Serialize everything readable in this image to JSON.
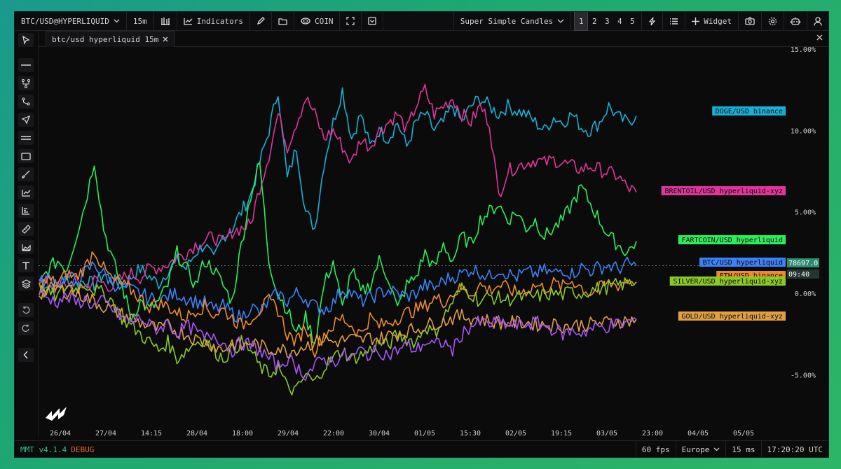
{
  "toolbar": {
    "symbol": "BTC/USD@HYPERLIQUID",
    "interval": "15m",
    "indicators_label": "Indicators",
    "coin_label": "COIN",
    "template_label": "Super Simple Candles",
    "layouts": [
      "1",
      "2",
      "3",
      "4",
      "5"
    ],
    "widget_label": "Widget"
  },
  "tab": {
    "label": "btc/usd hyperliquid 15m"
  },
  "status": {
    "version": "MMT v4.1.4",
    "debug": "DEBUG",
    "fps": "60 fps",
    "region": "Europe",
    "latency": "15 ms",
    "clock": "17:20:20 UTC"
  },
  "crosshair": {
    "price": "78697.0",
    "countdown": "09:40"
  },
  "colors": {
    "background": "#0b0b0c",
    "doge": "#19b0d6",
    "brent": "#e0359b",
    "fartcoin": "#2bef5a",
    "btc": "#3b82f6",
    "eth": "#f08a2c",
    "silver": "#8ac926",
    "gold": "#e0a040",
    "purple": "#a855f7"
  },
  "chart_data": {
    "type": "line",
    "ylabel": "",
    "ylim": [
      -7,
      15.5
    ],
    "y_ticks": [
      "15.00%",
      "10.00%",
      "5.00%",
      "0.00%",
      "-5.00%"
    ],
    "y_tick_values": [
      15,
      10,
      5,
      0,
      -5
    ],
    "x_ticks": [
      "26/04",
      "27/04",
      "14:15",
      "28/04",
      "18:00",
      "29/04",
      "22:00",
      "30/04",
      "01/05",
      "15:30",
      "02/05",
      "19:15",
      "03/05",
      "23:00",
      "04/05",
      "05/05"
    ],
    "x_ticks_idx": [
      2,
      7,
      12,
      17,
      22,
      27,
      32,
      37,
      42,
      47,
      52,
      57,
      62,
      67,
      72,
      77
    ],
    "n_points": 66,
    "series": [
      {
        "name": "DOGE/USD binance",
        "color": "#19b0d6",
        "values": [
          0.8,
          0.5,
          0.4,
          0.9,
          0.6,
          0.8,
          0.5,
          1.2,
          0.8,
          0.4,
          1.0,
          1.5,
          1.0,
          0.6,
          1.4,
          2.0,
          1.5,
          2.5,
          3.0,
          2.0,
          3.5,
          4.0,
          5.0,
          6.0,
          8.0,
          10.0,
          12.5,
          7.0,
          9.0,
          5.0,
          4.0,
          8.0,
          10.5,
          12.5,
          9.5,
          11.0,
          9.0,
          10.0,
          9.5,
          10.5,
          9.0,
          10.5,
          11.0,
          10.0,
          10.5,
          11.5,
          10.5,
          11.5,
          12.0,
          11.5,
          11.0,
          11.5,
          11.2,
          11.0,
          10.5,
          10.0,
          10.8,
          10.5,
          11.0,
          10.2,
          10.0,
          10.5,
          11.5,
          10.8,
          10.5,
          10.9
        ]
      },
      {
        "name": "BRENTOIL/USD hyperliquid-xyz",
        "color": "#e0359b",
        "values": [
          0.8,
          0.6,
          0.3,
          0.5,
          0.7,
          0.4,
          0.8,
          0.6,
          0.4,
          0.9,
          1.2,
          1.0,
          1.5,
          1.6,
          1.8,
          2.2,
          2.5,
          3.0,
          3.2,
          3.5,
          3.0,
          3.8,
          4.0,
          4.2,
          6.5,
          8.5,
          11.0,
          9.0,
          10.5,
          12.0,
          11.0,
          9.5,
          10.0,
          9.0,
          8.0,
          9.5,
          9.0,
          10.0,
          10.5,
          11.0,
          10.0,
          11.5,
          12.5,
          11.0,
          11.5,
          12.0,
          11.0,
          10.5,
          11.5,
          10.5,
          6.0,
          7.5,
          7.8,
          8.0,
          8.2,
          8.0,
          8.2,
          8.0,
          7.8,
          7.6,
          7.8,
          7.6,
          7.4,
          7.2,
          6.5,
          6.2
        ]
      },
      {
        "name": "FARTCOIN/USD hyperliquid",
        "color": "#2bef5a",
        "values": [
          0.5,
          1.5,
          2.0,
          1.5,
          3.5,
          5.5,
          8.2,
          4.0,
          2.0,
          0.5,
          -1.5,
          -0.5,
          -1.0,
          -0.5,
          0.5,
          2.5,
          1.5,
          0.5,
          2.0,
          1.5,
          0.5,
          -0.5,
          3.0,
          6.0,
          8.0,
          2.0,
          0.0,
          -1.0,
          -2.5,
          -1.5,
          -3.0,
          0.5,
          2.0,
          -1.0,
          1.5,
          0.0,
          0.5,
          2.0,
          1.0,
          -1.0,
          0.5,
          1.0,
          2.5,
          1.5,
          3.0,
          2.0,
          3.5,
          3.0,
          4.5,
          5.0,
          5.5,
          4.5,
          5.0,
          4.0,
          4.5,
          3.5,
          4.0,
          4.5,
          5.5,
          6.5,
          5.5,
          4.5,
          3.5,
          3.0,
          2.5,
          3.2
        ]
      },
      {
        "name": "BTC/USD hyperliquid",
        "color": "#3b82f6",
        "values": [
          0.6,
          0.9,
          0.7,
          1.0,
          0.8,
          1.3,
          1.8,
          1.2,
          0.6,
          0.4,
          0.2,
          0.0,
          -0.3,
          -0.5,
          -0.2,
          0.0,
          -0.3,
          -0.5,
          -0.6,
          -1.0,
          -0.8,
          -1.2,
          -1.5,
          -0.8,
          -1.2,
          -0.5,
          0.0,
          -0.5,
          0.0,
          -0.3,
          -0.8,
          -1.0,
          -0.6,
          0.3,
          0.0,
          -0.5,
          -0.3,
          0.0,
          0.2,
          0.0,
          -0.2,
          0.0,
          0.5,
          0.3,
          0.8,
          1.0,
          1.2,
          1.5,
          1.3,
          1.0,
          1.5,
          1.2,
          1.0,
          1.3,
          1.2,
          1.4,
          1.2,
          1.5,
          1.2,
          1.6,
          1.4,
          1.6,
          1.7,
          1.5,
          1.8,
          1.7
        ]
      },
      {
        "name": "ETH/USD binance",
        "color": "#f08a2c",
        "values": [
          0.4,
          0.8,
          0.6,
          1.2,
          1.0,
          1.6,
          2.7,
          1.5,
          0.8,
          0.5,
          0.2,
          -0.3,
          -0.8,
          -0.6,
          -0.8,
          -1.2,
          -1.5,
          -1.0,
          -0.8,
          -1.3,
          -1.0,
          -1.5,
          -2.0,
          -1.5,
          -1.0,
          -0.5,
          -1.0,
          -2.5,
          -3.0,
          -2.0,
          -3.5,
          -2.5,
          -2.0,
          -1.5,
          -2.0,
          -2.5,
          -1.5,
          -2.0,
          -1.8,
          -1.5,
          -1.2,
          -1.0,
          -0.8,
          -0.3,
          -0.5,
          0.0,
          0.3,
          0.0,
          0.5,
          0.2,
          0.5,
          0.3,
          0.0,
          0.2,
          0.5,
          0.3,
          0.6,
          0.4,
          0.8,
          0.4,
          0.0,
          0.3,
          0.6,
          0.5,
          0.8,
          0.7
        ]
      },
      {
        "name": "SILVER/USD hyperliquid-xyz",
        "color": "#8ac926",
        "values": [
          0.2,
          0.0,
          -0.2,
          0.5,
          0.3,
          0.6,
          0.2,
          0.0,
          -0.5,
          -1.5,
          -2.0,
          -2.5,
          -3.0,
          -3.5,
          -3.0,
          -4.0,
          -3.5,
          -3.0,
          -2.8,
          -3.5,
          -4.0,
          -3.5,
          -3.0,
          -3.5,
          -4.5,
          -5.0,
          -4.5,
          -5.8,
          -6.0,
          -5.0,
          -5.5,
          -4.5,
          -4.0,
          -3.5,
          -4.0,
          -3.8,
          -3.5,
          -3.0,
          -3.2,
          -2.5,
          -2.8,
          -3.0,
          -2.0,
          -2.5,
          -1.5,
          -0.5,
          0.3,
          0.0,
          -0.5,
          -0.2,
          -0.3,
          -0.4,
          -0.2,
          -0.3,
          -0.2,
          -0.1,
          0.0,
          -0.1,
          0.1,
          0.0,
          0.2,
          0.3,
          0.4,
          0.5,
          0.6,
          0.7
        ]
      },
      {
        "name": "GOLD/USD hyperliquid-xyz",
        "color": "#e0a040",
        "values": [
          0.0,
          0.2,
          0.3,
          0.1,
          0.0,
          -0.2,
          -0.5,
          -0.8,
          -1.0,
          -1.3,
          -1.5,
          -1.8,
          -2.0,
          -2.2,
          -2.0,
          -2.3,
          -2.5,
          -2.8,
          -3.0,
          -3.2,
          -3.5,
          -3.0,
          -3.3,
          -3.0,
          -3.2,
          -3.5,
          -3.3,
          -3.6,
          -3.4,
          -3.2,
          -3.0,
          -2.8,
          -3.0,
          -2.9,
          -2.8,
          -2.9,
          -2.7,
          -2.8,
          -2.6,
          -2.5,
          -2.3,
          -2.2,
          -2.0,
          -1.8,
          -1.7,
          -1.5,
          -1.4,
          -1.5,
          -1.6,
          -1.7,
          -1.8,
          -1.8,
          -1.8,
          -1.8,
          -1.9,
          -1.9,
          -1.9,
          -2.0,
          -2.0,
          -1.9,
          -1.9,
          -1.8,
          -1.8,
          -1.7,
          -1.7,
          -1.6
        ]
      },
      {
        "name": "",
        "color": "#a855f7",
        "values": [
          0.0,
          -0.3,
          -0.5,
          -0.2,
          -0.6,
          -0.4,
          -0.8,
          -0.5,
          -1.0,
          -1.5,
          -1.8,
          -1.5,
          -2.0,
          -2.2,
          -1.8,
          -2.5,
          -2.0,
          -2.3,
          -2.8,
          -2.5,
          -3.0,
          -3.5,
          -3.0,
          -3.2,
          -3.5,
          -4.0,
          -4.5,
          -4.0,
          -4.5,
          -5.0,
          -4.5,
          -4.0,
          -4.2,
          -3.8,
          -4.0,
          -3.5,
          -3.8,
          -3.5,
          -3.8,
          -3.5,
          -3.2,
          -3.5,
          -3.0,
          -3.2,
          -3.0,
          -3.5,
          -2.5,
          -2.0,
          -1.8,
          -1.9,
          -1.8,
          -1.9,
          -2.0,
          -1.9,
          -1.8,
          -2.0,
          -2.2,
          -2.5,
          -2.3,
          -2.4,
          -2.2,
          -2.1,
          -2.0,
          -1.9,
          -1.8,
          -1.6
        ]
      }
    ]
  }
}
